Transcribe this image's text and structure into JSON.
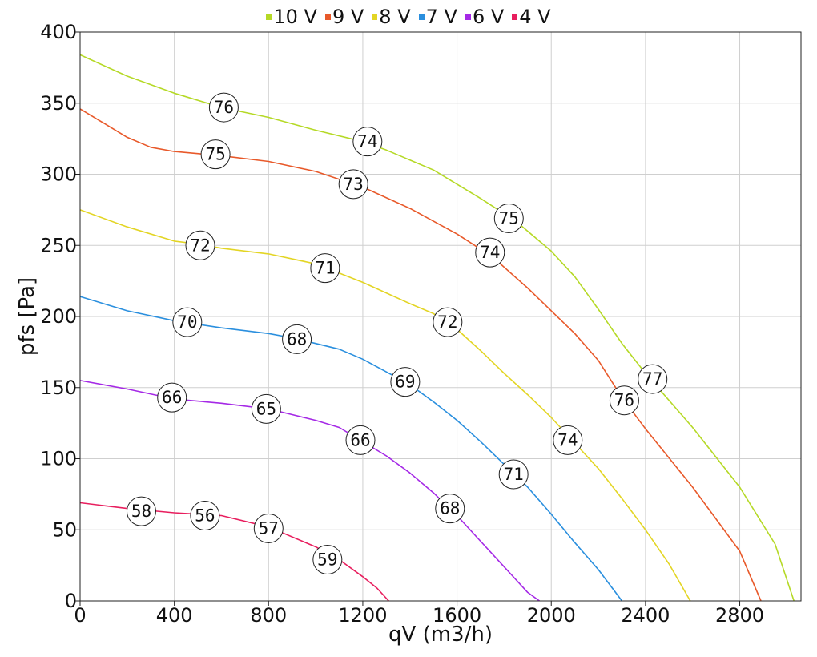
{
  "chart_data": {
    "type": "line",
    "xlabel": "qV (m3/h)",
    "ylabel": "pfs [Pa]",
    "xlim": [
      0,
      3060
    ],
    "ylim": [
      0,
      400
    ],
    "x_ticks": [
      0,
      400,
      800,
      1200,
      1600,
      2000,
      2400,
      2800
    ],
    "y_ticks": [
      0,
      50,
      100,
      150,
      200,
      250,
      300,
      350,
      400
    ],
    "grid": true,
    "legend_position": "top-center",
    "series": [
      {
        "name": "10 V",
        "color": "#b5d926",
        "points": [
          [
            0,
            384
          ],
          [
            200,
            369
          ],
          [
            400,
            357
          ],
          [
            600,
            347
          ],
          [
            800,
            340
          ],
          [
            1000,
            331
          ],
          [
            1200,
            323
          ],
          [
            1300,
            317
          ],
          [
            1500,
            303
          ],
          [
            1700,
            283
          ],
          [
            1850,
            267
          ],
          [
            2000,
            246
          ],
          [
            2100,
            228
          ],
          [
            2200,
            205
          ],
          [
            2300,
            181
          ],
          [
            2400,
            160
          ],
          [
            2600,
            122
          ],
          [
            2800,
            80
          ],
          [
            2950,
            40
          ],
          [
            3030,
            0
          ]
        ],
        "labels": [
          {
            "x": 610,
            "y": 347,
            "text": "76"
          },
          {
            "x": 1220,
            "y": 323,
            "text": "74"
          },
          {
            "x": 1820,
            "y": 269,
            "text": "75"
          },
          {
            "x": 2430,
            "y": 156,
            "text": "77"
          }
        ]
      },
      {
        "name": "9 V",
        "color": "#e8592a",
        "points": [
          [
            0,
            346
          ],
          [
            100,
            336
          ],
          [
            200,
            326
          ],
          [
            300,
            319
          ],
          [
            400,
            316
          ],
          [
            600,
            313
          ],
          [
            800,
            309
          ],
          [
            1000,
            302
          ],
          [
            1200,
            291
          ],
          [
            1400,
            276
          ],
          [
            1600,
            258
          ],
          [
            1750,
            242
          ],
          [
            1900,
            220
          ],
          [
            2000,
            204
          ],
          [
            2100,
            188
          ],
          [
            2200,
            169
          ],
          [
            2300,
            143
          ],
          [
            2400,
            121
          ],
          [
            2600,
            80
          ],
          [
            2800,
            35
          ],
          [
            2890,
            0
          ]
        ],
        "labels": [
          {
            "x": 575,
            "y": 314,
            "text": "75"
          },
          {
            "x": 1160,
            "y": 293,
            "text": "73"
          },
          {
            "x": 1740,
            "y": 245,
            "text": "74"
          },
          {
            "x": 2310,
            "y": 141,
            "text": "76"
          }
        ]
      },
      {
        "name": "8 V",
        "color": "#e3d524",
        "points": [
          [
            0,
            275
          ],
          [
            200,
            263
          ],
          [
            400,
            253
          ],
          [
            500,
            251
          ],
          [
            600,
            248
          ],
          [
            800,
            244
          ],
          [
            1000,
            237
          ],
          [
            1200,
            224
          ],
          [
            1400,
            209
          ],
          [
            1500,
            202
          ],
          [
            1600,
            191
          ],
          [
            1700,
            176
          ],
          [
            1800,
            160
          ],
          [
            1900,
            145
          ],
          [
            2000,
            129
          ],
          [
            2100,
            111
          ],
          [
            2200,
            93
          ],
          [
            2300,
            72
          ],
          [
            2400,
            50
          ],
          [
            2500,
            26
          ],
          [
            2590,
            0
          ]
        ],
        "labels": [
          {
            "x": 510,
            "y": 250,
            "text": "72"
          },
          {
            "x": 1040,
            "y": 234,
            "text": "71"
          },
          {
            "x": 1560,
            "y": 196,
            "text": "72"
          },
          {
            "x": 2070,
            "y": 113,
            "text": "74"
          }
        ]
      },
      {
        "name": "7 V",
        "color": "#2a8fde",
        "points": [
          [
            0,
            214
          ],
          [
            200,
            204
          ],
          [
            400,
            197
          ],
          [
            600,
            192
          ],
          [
            800,
            188
          ],
          [
            900,
            185
          ],
          [
            1000,
            181
          ],
          [
            1100,
            177
          ],
          [
            1200,
            170
          ],
          [
            1300,
            161
          ],
          [
            1400,
            152
          ],
          [
            1500,
            140
          ],
          [
            1600,
            127
          ],
          [
            1700,
            112
          ],
          [
            1800,
            96
          ],
          [
            1900,
            80
          ],
          [
            2000,
            61
          ],
          [
            2100,
            41
          ],
          [
            2200,
            22
          ],
          [
            2300,
            0
          ]
        ],
        "labels": [
          {
            "x": 455,
            "y": 196,
            "text": "70"
          },
          {
            "x": 920,
            "y": 184,
            "text": "68"
          },
          {
            "x": 1380,
            "y": 154,
            "text": "69"
          },
          {
            "x": 1840,
            "y": 89,
            "text": "71"
          }
        ]
      },
      {
        "name": "6 V",
        "color": "#a529e6",
        "points": [
          [
            0,
            155
          ],
          [
            200,
            149
          ],
          [
            400,
            142
          ],
          [
            600,
            139
          ],
          [
            800,
            135
          ],
          [
            1000,
            127
          ],
          [
            1100,
            122
          ],
          [
            1200,
            112
          ],
          [
            1300,
            102
          ],
          [
            1400,
            90
          ],
          [
            1500,
            76
          ],
          [
            1600,
            60
          ],
          [
            1700,
            42
          ],
          [
            1800,
            24
          ],
          [
            1900,
            6
          ],
          [
            1950,
            0
          ]
        ],
        "labels": [
          {
            "x": 390,
            "y": 143,
            "text": "66"
          },
          {
            "x": 790,
            "y": 135,
            "text": "65"
          },
          {
            "x": 1190,
            "y": 113,
            "text": "66"
          },
          {
            "x": 1570,
            "y": 65,
            "text": "68"
          }
        ]
      },
      {
        "name": "4 V",
        "color": "#e81e5e",
        "points": [
          [
            0,
            69
          ],
          [
            200,
            65
          ],
          [
            400,
            62
          ],
          [
            600,
            60
          ],
          [
            800,
            52
          ],
          [
            1000,
            38
          ],
          [
            1100,
            29
          ],
          [
            1200,
            17
          ],
          [
            1260,
            9
          ],
          [
            1310,
            0
          ]
        ],
        "labels": [
          {
            "x": 260,
            "y": 63,
            "text": "58"
          },
          {
            "x": 530,
            "y": 60,
            "text": "56"
          },
          {
            "x": 800,
            "y": 51,
            "text": "57"
          },
          {
            "x": 1050,
            "y": 29,
            "text": "59"
          }
        ]
      }
    ]
  }
}
